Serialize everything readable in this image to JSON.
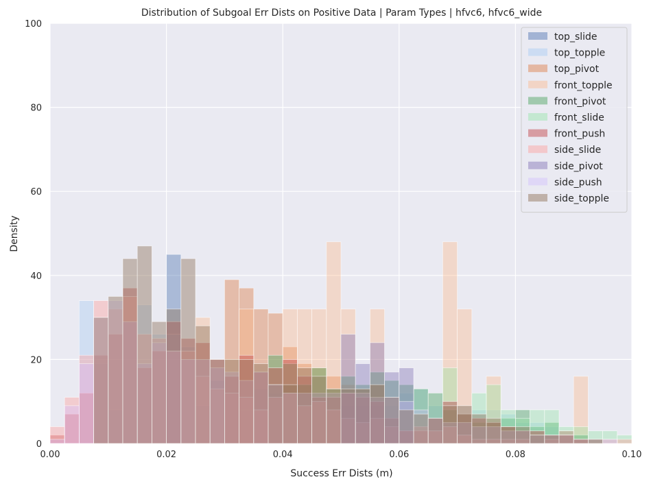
{
  "chart_data": {
    "type": "histogram",
    "title": "Distribution of Subgoal Err Dists on Positive Data | Param Types | hfvc6, hfvc6_wide",
    "xlabel": "Success Err Dists (m)",
    "ylabel": "Density",
    "xlim": [
      0,
      0.1
    ],
    "ylim": [
      0,
      100
    ],
    "bin_width": 0.0025,
    "xticks": [
      "0.00",
      "0.02",
      "0.04",
      "0.06",
      "0.08",
      "0.10"
    ],
    "yticks": [
      "0",
      "20",
      "40",
      "60",
      "80",
      "100"
    ],
    "grid": true,
    "legend_position": "top-right",
    "series": [
      {
        "name": "top_slide",
        "color": "#4c72b0",
        "alpha": 0.4,
        "values": [
          0,
          0,
          0,
          0,
          0,
          0,
          0,
          0,
          45,
          0,
          0,
          0,
          0,
          0,
          0,
          0,
          0,
          0,
          0,
          0,
          0,
          0,
          0,
          0,
          0,
          0,
          0,
          0,
          0,
          0,
          0,
          0,
          0,
          0,
          0,
          0,
          0,
          0,
          0,
          0
        ]
      },
      {
        "name": "top_topple",
        "color": "#a1c9f4",
        "alpha": 0.35,
        "values": [
          0,
          0,
          34,
          19,
          8,
          29,
          33,
          26,
          26,
          23,
          9,
          15,
          12,
          8,
          13,
          12,
          14,
          14,
          12,
          11,
          9,
          9,
          9,
          9,
          12,
          13,
          9,
          10,
          9,
          8,
          8,
          7,
          5,
          5,
          4,
          3,
          2,
          1,
          0,
          0
        ]
      },
      {
        "name": "top_pivot",
        "color": "#dd8452",
        "alpha": 0.45,
        "values": [
          0,
          0,
          0,
          0,
          0,
          0,
          0,
          0,
          0,
          0,
          0,
          0,
          39,
          37,
          32,
          31,
          23,
          19,
          18,
          16,
          14,
          13,
          14,
          0,
          0,
          0,
          0,
          0,
          0,
          0,
          0,
          0,
          0,
          0,
          0,
          0,
          0,
          0,
          0,
          0
        ]
      },
      {
        "name": "front_topple",
        "color": "#ffb482",
        "alpha": 0.35,
        "values": [
          0,
          0,
          0,
          0,
          0,
          0,
          0,
          0,
          0,
          0,
          30,
          0,
          0,
          32,
          0,
          0,
          32,
          32,
          32,
          48,
          32,
          0,
          32,
          0,
          0,
          0,
          0,
          48,
          32,
          0,
          16,
          0,
          0,
          0,
          0,
          0,
          16,
          0,
          0,
          0
        ]
      },
      {
        "name": "front_pivot",
        "color": "#55a868",
        "alpha": 0.45,
        "values": [
          0,
          0,
          0,
          0,
          0,
          0,
          0,
          0,
          0,
          0,
          0,
          0,
          0,
          0,
          0,
          21,
          19,
          14,
          18,
          13,
          16,
          14,
          17,
          15,
          14,
          13,
          12,
          8,
          7,
          5,
          5,
          6,
          8,
          4,
          5,
          3,
          2,
          1,
          0,
          0
        ]
      },
      {
        "name": "front_slide",
        "color": "#8de5a1",
        "alpha": 0.35,
        "values": [
          0,
          0,
          0,
          0,
          0,
          0,
          0,
          0,
          0,
          0,
          0,
          0,
          0,
          0,
          0,
          0,
          0,
          0,
          0,
          0,
          0,
          0,
          0,
          0,
          0,
          0,
          0,
          18,
          0,
          12,
          14,
          8,
          6,
          8,
          8,
          4,
          4,
          3,
          3,
          2
        ]
      },
      {
        "name": "front_push",
        "color": "#c44e52",
        "alpha": 0.45,
        "values": [
          2,
          7,
          12,
          21,
          26,
          37,
          18,
          22,
          29,
          25,
          24,
          20,
          16,
          21,
          17,
          18,
          20,
          16,
          11,
          11,
          12,
          11,
          10,
          6,
          3,
          3,
          6,
          10,
          7,
          6,
          5,
          4,
          3,
          3,
          2,
          2,
          1,
          0,
          0,
          0
        ]
      },
      {
        "name": "side_slide",
        "color": "#ff9f9b",
        "alpha": 0.4,
        "values": [
          4,
          11,
          21,
          34,
          32,
          35,
          26,
          25,
          22,
          22,
          16,
          13,
          12,
          11,
          8,
          11,
          12,
          9,
          10,
          8,
          6,
          5,
          6,
          4,
          3,
          4,
          3,
          4,
          2,
          1,
          1,
          1,
          1,
          0,
          1,
          3,
          1,
          1,
          1,
          1
        ]
      },
      {
        "name": "side_pivot",
        "color": "#8172b3",
        "alpha": 0.4,
        "values": [
          0,
          0,
          0,
          0,
          0,
          0,
          0,
          0,
          0,
          0,
          0,
          0,
          0,
          0,
          0,
          0,
          0,
          0,
          0,
          0,
          26,
          19,
          24,
          17,
          18,
          0,
          0,
          0,
          0,
          0,
          0,
          0,
          0,
          0,
          0,
          0,
          0,
          0,
          0,
          0
        ]
      },
      {
        "name": "side_push",
        "color": "#d0bbff",
        "alpha": 0.35,
        "values": [
          1,
          9,
          19,
          30,
          34,
          29,
          19,
          24,
          22,
          20,
          20,
          18,
          17,
          15,
          17,
          14,
          12,
          12,
          12,
          12,
          12,
          12,
          11,
          11,
          10,
          8,
          6,
          5,
          5,
          4,
          4,
          3,
          3,
          2,
          2,
          2,
          1,
          1,
          1,
          0
        ]
      },
      {
        "name": "side_topple",
        "color": "#937860",
        "alpha": 0.45,
        "values": [
          0,
          0,
          0,
          30,
          35,
          44,
          47,
          29,
          32,
          44,
          28,
          20,
          20,
          20,
          19,
          14,
          14,
          18,
          16,
          13,
          13,
          13,
          14,
          11,
          8,
          7,
          6,
          9,
          9,
          7,
          6,
          4,
          4,
          2,
          2,
          2,
          1,
          1,
          0,
          0
        ]
      }
    ]
  }
}
